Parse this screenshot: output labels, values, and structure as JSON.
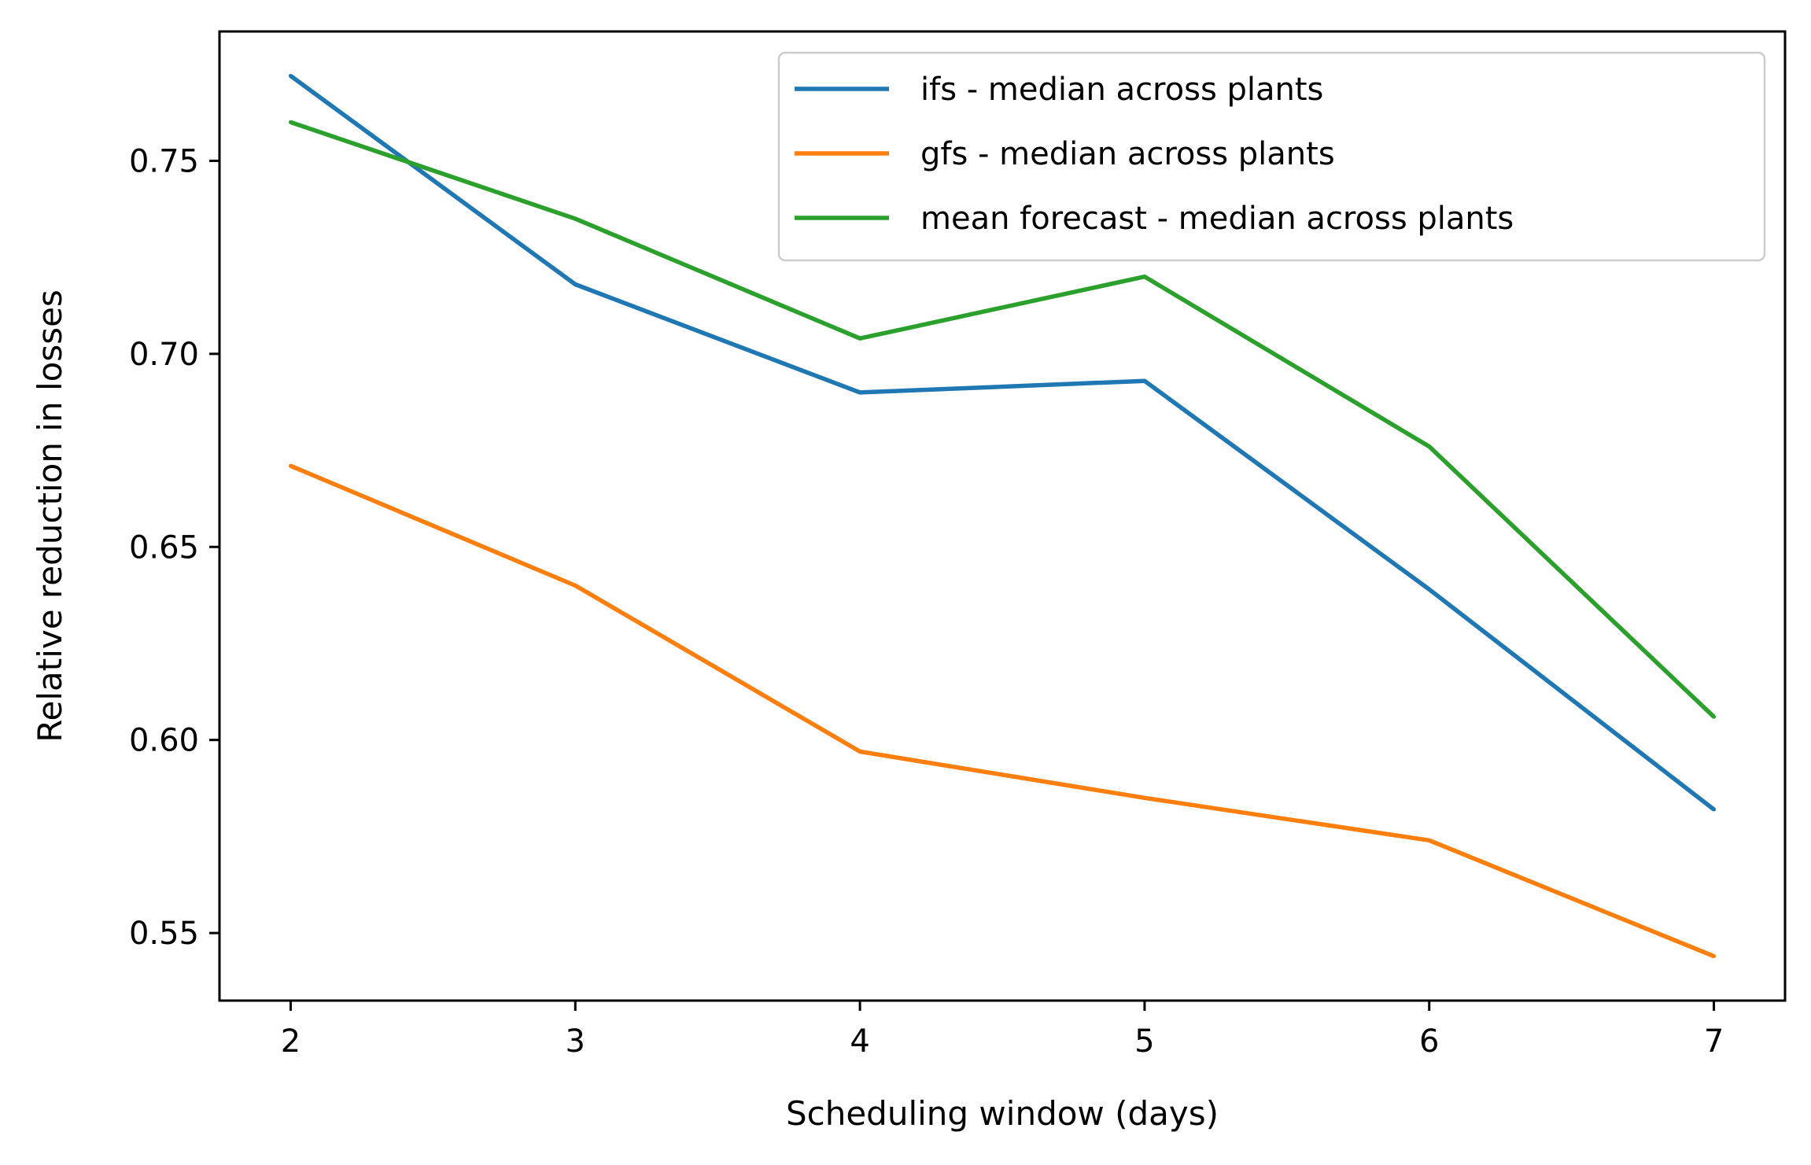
{
  "chart_data": {
    "type": "line",
    "title": "",
    "xlabel": "Scheduling window (days)",
    "ylabel": "Relative reduction in losses",
    "x": [
      2,
      3,
      4,
      5,
      6,
      7
    ],
    "xticks": [
      "2",
      "3",
      "4",
      "5",
      "6",
      "7"
    ],
    "yticks": [
      "0.55",
      "0.60",
      "0.65",
      "0.70",
      "0.75"
    ],
    "xlim": [
      1.75,
      7.25
    ],
    "ylim": [
      0.5325,
      0.7835
    ],
    "grid": false,
    "legend_position": "top-right",
    "series": [
      {
        "name": "ifs - median across plants",
        "color": "#1f77b4",
        "values": [
          0.772,
          0.718,
          0.69,
          0.693,
          0.639,
          0.582
        ]
      },
      {
        "name": "gfs - median across plants",
        "color": "#ff7f0e",
        "values": [
          0.671,
          0.64,
          0.597,
          0.585,
          0.574,
          0.544
        ]
      },
      {
        "name": "mean forecast - median across plants",
        "color": "#2ca02c",
        "values": [
          0.76,
          0.735,
          0.704,
          0.72,
          0.676,
          0.606
        ]
      }
    ]
  }
}
